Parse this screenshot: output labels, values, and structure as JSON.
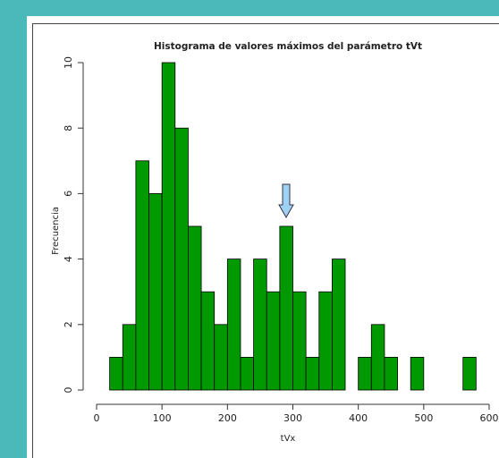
{
  "chart_data": {
    "type": "histogram",
    "title": "Histograma de valores máximos del parámetro tVt",
    "x_label": "tVx",
    "y_label": "Frecuencia",
    "bins": [
      20,
      40,
      60,
      80,
      100,
      120,
      140,
      160,
      180,
      200,
      220,
      240,
      260,
      280,
      300,
      320,
      340,
      360,
      380,
      400,
      420,
      440,
      460,
      480,
      500,
      520,
      540,
      560,
      580
    ],
    "values": [
      1,
      2,
      7,
      6,
      10,
      8,
      5,
      3,
      2,
      4,
      1,
      4,
      3,
      5,
      3,
      1,
      3,
      4,
      0,
      1,
      2,
      1,
      0,
      1,
      0,
      0,
      0,
      1
    ],
    "color": "#009900",
    "xlim": [
      0,
      600
    ],
    "xticks": [
      0,
      100,
      200,
      300,
      400,
      500,
      600
    ],
    "ylim": [
      0,
      10
    ],
    "yticks": [
      0,
      2,
      4,
      6,
      8,
      10
    ]
  }
}
